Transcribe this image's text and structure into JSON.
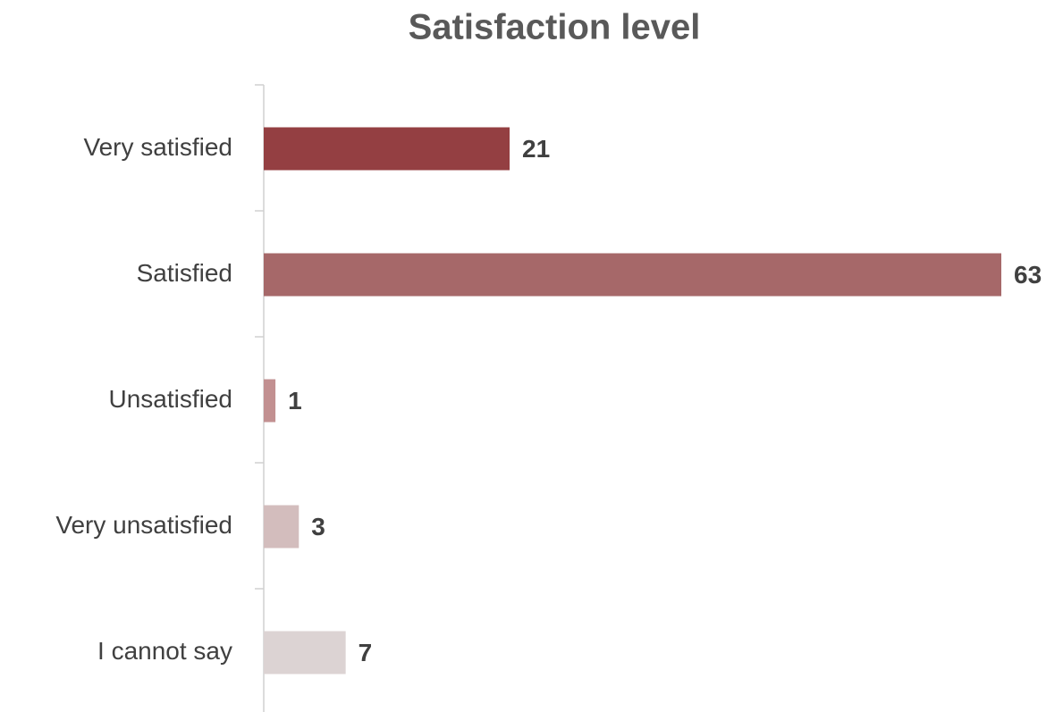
{
  "chart_data": {
    "type": "barh",
    "title": "Satisfaction level",
    "categories": [
      "Very satisfied",
      "Satisfied",
      "Unsatisfied",
      "Very unsatisfied",
      "I cannot say"
    ],
    "values": [
      21,
      63,
      1,
      3,
      7
    ],
    "colors": [
      "#943f42",
      "#a66869",
      "#c29091",
      "#d3bdbd",
      "#dcd3d3"
    ]
  }
}
